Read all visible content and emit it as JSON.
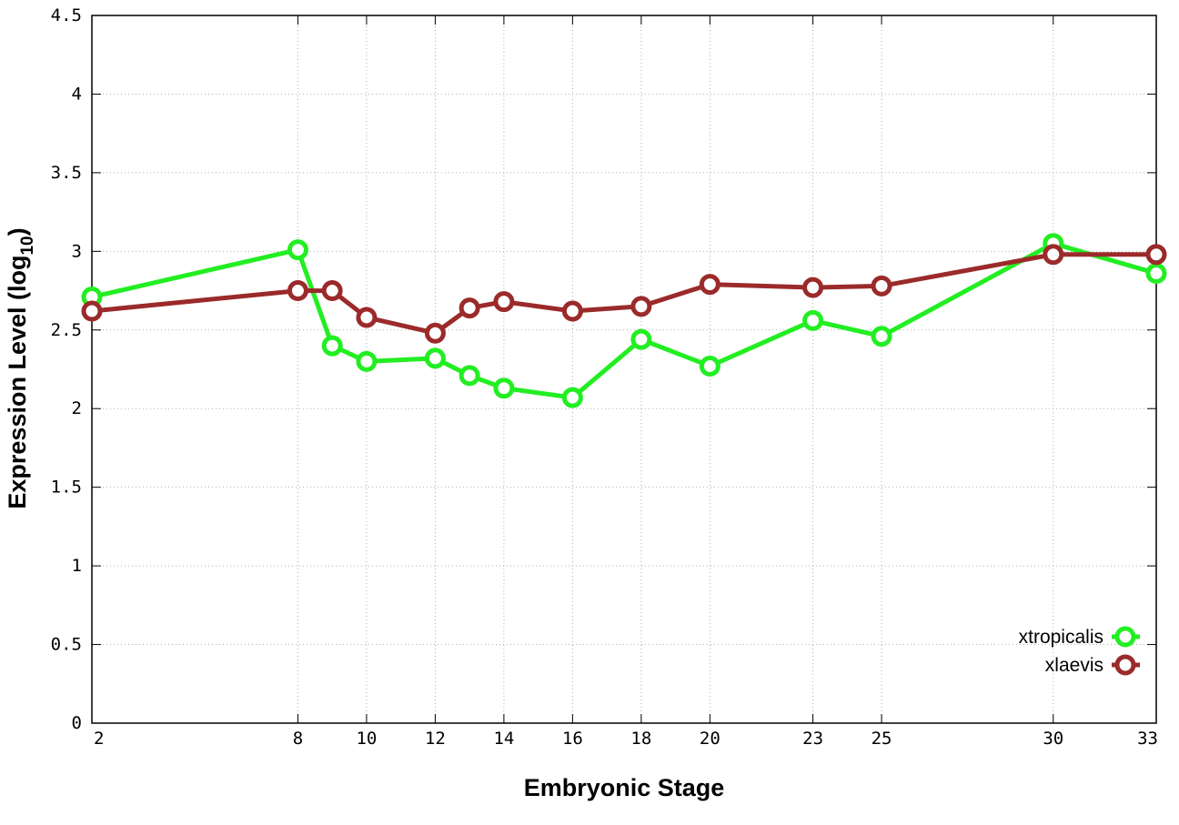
{
  "chart_data": {
    "type": "line",
    "xlabel": "Embryonic Stage",
    "ylabel_main": "Expression Level (log",
    "ylabel_sub": "10",
    "ylabel_close": ")",
    "xlim": [
      2,
      33
    ],
    "ylim": [
      0,
      4.5
    ],
    "x": [
      2,
      8,
      9,
      10,
      12,
      13,
      14,
      16,
      18,
      20,
      23,
      25,
      30,
      33
    ],
    "x_tick_labels": [
      "2",
      "8",
      "10",
      "12",
      "14",
      "16",
      "18",
      "20",
      "23",
      "25",
      "30",
      "33"
    ],
    "x_tick_values": [
      2,
      8,
      10,
      12,
      14,
      16,
      18,
      20,
      23,
      25,
      30,
      33
    ],
    "y_tick_labels": [
      "0",
      "0.5",
      "1",
      "1.5",
      "2",
      "2.5",
      "3",
      "3.5",
      "4",
      "4.5"
    ],
    "y_tick_values": [
      0,
      0.5,
      1,
      1.5,
      2,
      2.5,
      3,
      3.5,
      4,
      4.5
    ],
    "grid": true,
    "legend_position": "bottom-right",
    "series": [
      {
        "name": "xtropicalis",
        "color": "#22ee22",
        "values": [
          2.71,
          3.01,
          2.4,
          2.3,
          2.32,
          2.21,
          2.13,
          2.07,
          2.44,
          2.27,
          2.56,
          2.46,
          3.05,
          2.86
        ]
      },
      {
        "name": "xlaevis",
        "color": "#9b2a2a",
        "values": [
          2.62,
          2.75,
          2.75,
          2.58,
          2.48,
          2.64,
          2.68,
          2.62,
          2.65,
          2.79,
          2.77,
          2.78,
          2.98,
          2.98
        ]
      }
    ]
  }
}
